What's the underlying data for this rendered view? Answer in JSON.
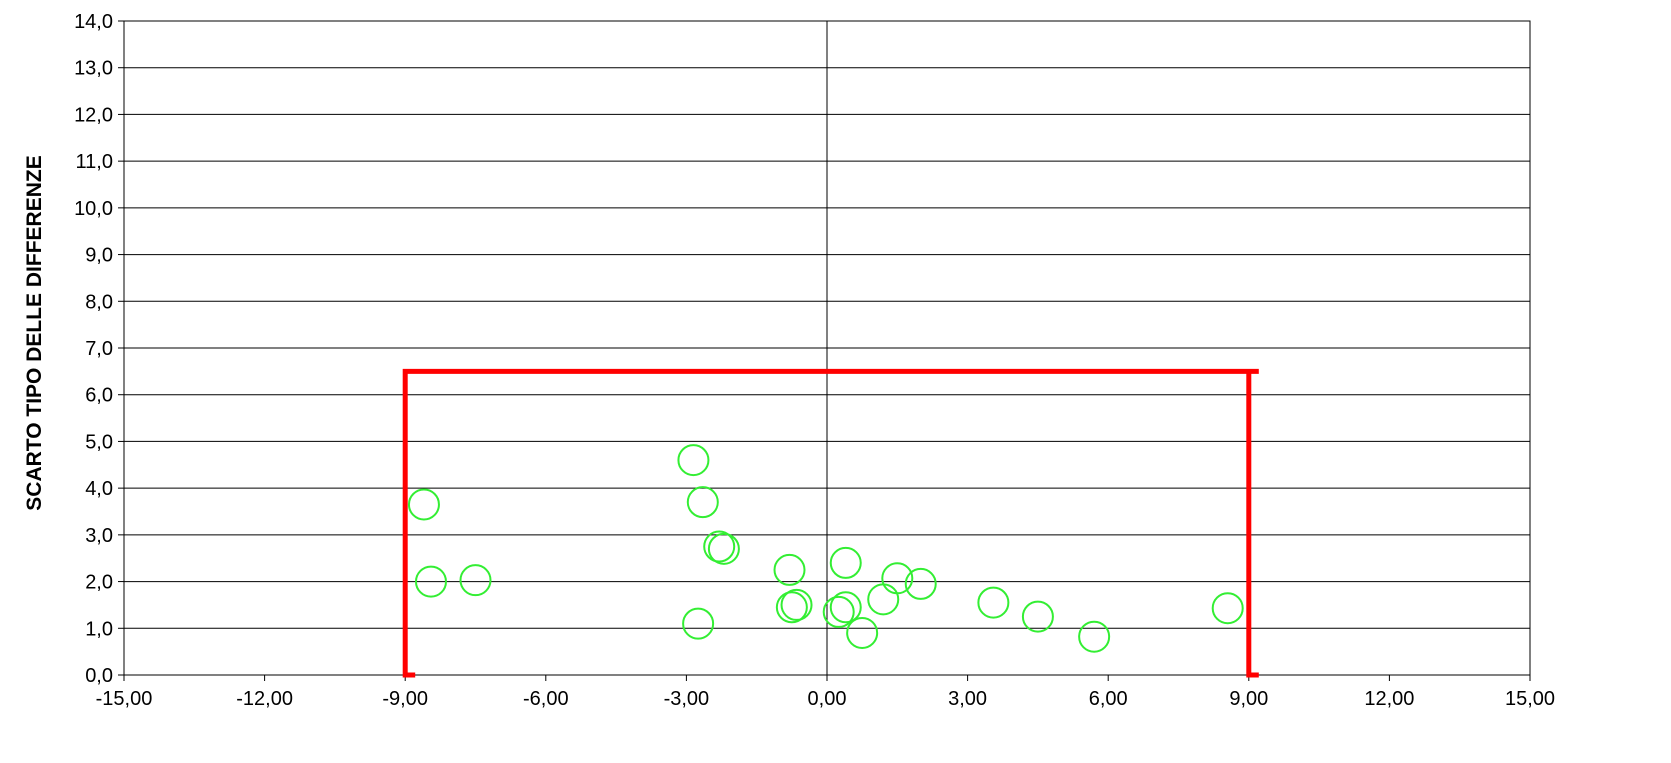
{
  "chart_data": {
    "type": "scatter",
    "title": "",
    "xlabel": "",
    "ylabel": "SCARTO TIPO DELLE DIFFERENZE",
    "xlim": [
      -15,
      15
    ],
    "ylim": [
      0,
      14
    ],
    "x_ticks": [
      "-15,00",
      "-12,00",
      "-9,00",
      "-6,00",
      "-3,00",
      "0,00",
      "3,00",
      "6,00",
      "9,00",
      "12,00",
      "15,00"
    ],
    "y_ticks": [
      "0,0",
      "1,0",
      "2,0",
      "3,0",
      "4,0",
      "5,0",
      "6,0",
      "7,0",
      "8,0",
      "9,0",
      "10,0",
      "11,0",
      "12,0",
      "13,0",
      "14,0"
    ],
    "grid": "horizontal",
    "marker_color": "#33ee33",
    "limit_color": "#ff0000",
    "series": [
      {
        "marker": "open-circle",
        "points": [
          {
            "x": -8.6,
            "y": 3.65
          },
          {
            "x": -8.45,
            "y": 2.0
          },
          {
            "x": -7.5,
            "y": 2.03
          },
          {
            "x": -2.85,
            "y": 4.6
          },
          {
            "x": -2.65,
            "y": 3.7
          },
          {
            "x": -2.75,
            "y": 1.1
          },
          {
            "x": -2.3,
            "y": 2.75
          },
          {
            "x": -2.2,
            "y": 2.7
          },
          {
            "x": -0.8,
            "y": 2.25
          },
          {
            "x": -0.75,
            "y": 1.45
          },
          {
            "x": -0.65,
            "y": 1.5
          },
          {
            "x": 0.25,
            "y": 1.35
          },
          {
            "x": 0.4,
            "y": 1.45
          },
          {
            "x": 0.4,
            "y": 2.4
          },
          {
            "x": 0.75,
            "y": 0.9
          },
          {
            "x": 1.2,
            "y": 1.62
          },
          {
            "x": 1.5,
            "y": 2.07
          },
          {
            "x": 2.0,
            "y": 1.95
          },
          {
            "x": 3.55,
            "y": 1.55
          },
          {
            "x": 4.5,
            "y": 1.25
          },
          {
            "x": 5.7,
            "y": 0.82
          },
          {
            "x": 8.55,
            "y": 1.43
          }
        ]
      }
    ],
    "limits": {
      "x_left": -9.0,
      "x_right": 9.0,
      "y_top": 6.5
    }
  }
}
